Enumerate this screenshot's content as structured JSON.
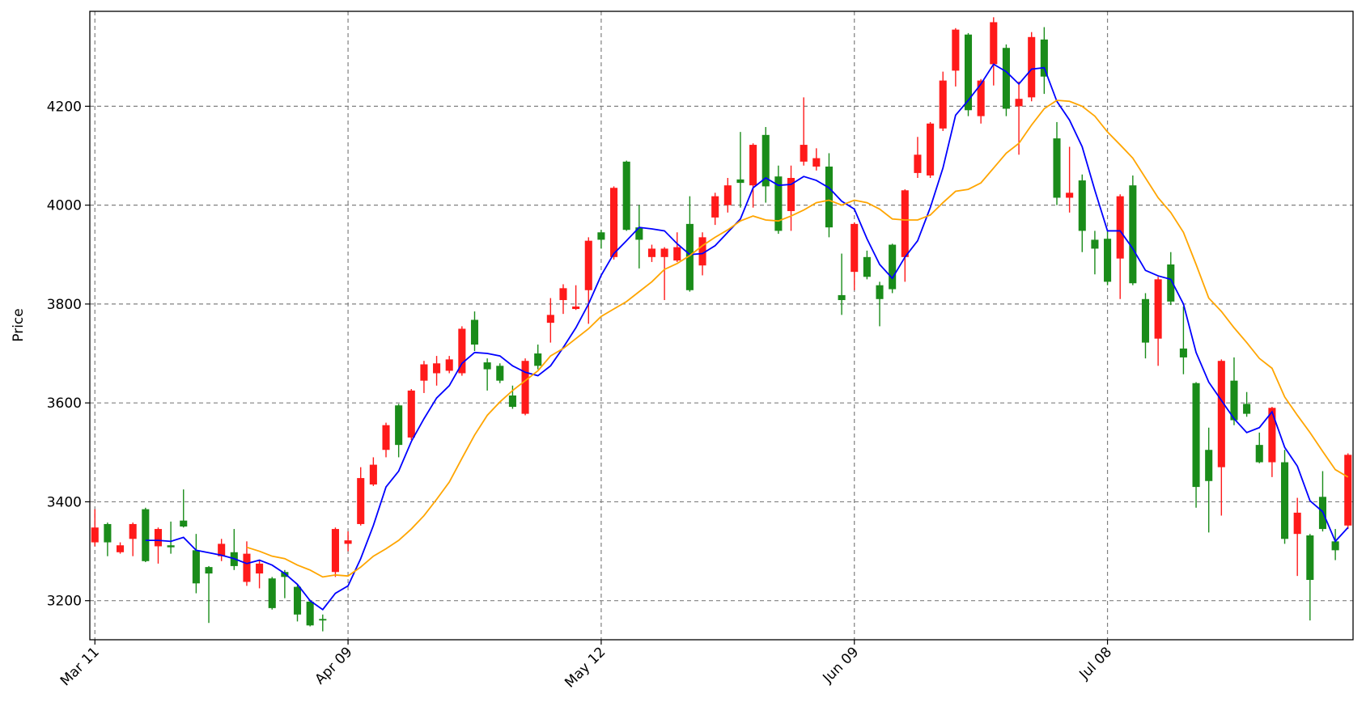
{
  "chart_data": {
    "type": "candlestick",
    "ylabel": "Price",
    "categories": [
      "Mar 11",
      null,
      null,
      null,
      null,
      null,
      null,
      null,
      null,
      null,
      null,
      null,
      null,
      null,
      null,
      null,
      null,
      null,
      null,
      null,
      "Apr 09",
      null,
      null,
      null,
      null,
      null,
      null,
      null,
      null,
      null,
      null,
      null,
      null,
      null,
      null,
      null,
      null,
      null,
      null,
      null,
      "May 12",
      null,
      null,
      null,
      null,
      null,
      null,
      null,
      null,
      null,
      null,
      null,
      null,
      null,
      null,
      null,
      null,
      null,
      null,
      null,
      "Jun 09",
      null,
      null,
      null,
      null,
      null,
      null,
      null,
      null,
      null,
      null,
      null,
      null,
      null,
      null,
      null,
      null,
      null,
      null,
      null,
      "Jul 08",
      null,
      null,
      null,
      null,
      null,
      null,
      null,
      null,
      null,
      null,
      null,
      null,
      null,
      null,
      null,
      null,
      null,
      null,
      null
    ],
    "open": [
      3318,
      3355,
      3298,
      3325,
      3385,
      3310,
      3312,
      3362,
      3302,
      3268,
      3290,
      3298,
      3238,
      3255,
      3245,
      3258,
      3228,
      3198,
      3163,
      3258,
      3315,
      3355,
      3435,
      3505,
      3595,
      3530,
      3645,
      3660,
      3665,
      3660,
      3768,
      3682,
      3675,
      3615,
      3578,
      3700,
      3762,
      3808,
      3790,
      3828,
      3945,
      3895,
      4088,
      3955,
      3895,
      3895,
      3888,
      3962,
      3878,
      3975,
      4000,
      4052,
      4040,
      4142,
      4058,
      3988,
      4088,
      4078,
      4078,
      3818,
      3865,
      3895,
      3838,
      3920,
      3895,
      4065,
      4060,
      4155,
      4272,
      4345,
      4180,
      4285,
      4318,
      4200,
      4218,
      4335,
      4135,
      4015,
      4050,
      3930,
      3932,
      3892,
      4040,
      3810,
      3730,
      3880,
      3710,
      3640,
      3505,
      3470,
      3645,
      3598,
      3515,
      3480,
      3480,
      3335,
      3332,
      3410,
      3320,
      3352
    ],
    "high": [
      3385,
      3358,
      3318,
      3358,
      3388,
      3348,
      3360,
      3425,
      3335,
      3270,
      3325,
      3345,
      3320,
      3282,
      3248,
      3262,
      3232,
      3202,
      3172,
      3348,
      3340,
      3470,
      3490,
      3560,
      3598,
      3628,
      3685,
      3695,
      3695,
      3755,
      3785,
      3690,
      3680,
      3635,
      3690,
      3718,
      3812,
      3840,
      3838,
      3935,
      3950,
      4038,
      4090,
      4000,
      3920,
      3915,
      3945,
      4018,
      3945,
      4025,
      4055,
      4148,
      4125,
      4158,
      4080,
      4080,
      4218,
      4115,
      4105,
      3902,
      3965,
      3908,
      3845,
      3922,
      4032,
      4138,
      4168,
      4270,
      4358,
      4348,
      4255,
      4380,
      4325,
      4250,
      4350,
      4360,
      4168,
      4118,
      4062,
      3948,
      3948,
      4022,
      4060,
      3822,
      3855,
      3905,
      3795,
      3642,
      3550,
      3688,
      3692,
      3622,
      3540,
      3592,
      3505,
      3408,
      3335,
      3462,
      3345,
      3498
    ],
    "low": [
      3310,
      3290,
      3295,
      3290,
      3278,
      3275,
      3295,
      3348,
      3215,
      3155,
      3280,
      3262,
      3230,
      3225,
      3182,
      3205,
      3158,
      3148,
      3138,
      3248,
      3300,
      3352,
      3432,
      3490,
      3490,
      3525,
      3620,
      3635,
      3660,
      3655,
      3705,
      3625,
      3640,
      3588,
      3575,
      3668,
      3722,
      3780,
      3788,
      3760,
      3912,
      3890,
      3948,
      3872,
      3885,
      3808,
      3885,
      3825,
      3858,
      3960,
      3985,
      3995,
      3995,
      4005,
      3942,
      3948,
      4080,
      4070,
      3935,
      3778,
      3828,
      3850,
      3755,
      3822,
      3845,
      4055,
      4055,
      4150,
      4240,
      4180,
      4165,
      4242,
      4180,
      4102,
      4210,
      4225,
      4000,
      3985,
      3905,
      3860,
      3838,
      3810,
      3838,
      3690,
      3675,
      3798,
      3658,
      3388,
      3338,
      3372,
      3555,
      3572,
      3478,
      3450,
      3315,
      3250,
      3160,
      3340,
      3282,
      3345
    ],
    "close": [
      3348,
      3318,
      3312,
      3355,
      3280,
      3345,
      3308,
      3350,
      3235,
      3255,
      3315,
      3270,
      3295,
      3275,
      3185,
      3248,
      3172,
      3150,
      3160,
      3345,
      3322,
      3448,
      3475,
      3555,
      3515,
      3625,
      3678,
      3680,
      3688,
      3750,
      3718,
      3668,
      3645,
      3592,
      3685,
      3675,
      3778,
      3832,
      3795,
      3928,
      3930,
      4035,
      3950,
      3930,
      3912,
      3912,
      3915,
      3828,
      3935,
      4018,
      4040,
      4045,
      4122,
      4038,
      3948,
      4055,
      4122,
      4095,
      3955,
      3808,
      3962,
      3855,
      3810,
      3830,
      4030,
      4102,
      4165,
      4252,
      4355,
      4192,
      4252,
      4370,
      4195,
      4215,
      4340,
      4260,
      4015,
      4025,
      3948,
      3912,
      3845,
      4018,
      3842,
      3722,
      3850,
      3805,
      3692,
      3430,
      3442,
      3685,
      3565,
      3578,
      3480,
      3590,
      3325,
      3378,
      3242,
      3345,
      3302,
      3495
    ],
    "up_color": "#ff1a1a",
    "down_color": "#1a8c1a",
    "series": [
      {
        "color": "#0000ff",
        "values": [
          null,
          null,
          null,
          null,
          3322,
          3322,
          3320,
          3328,
          3302,
          3297,
          3292,
          3285,
          3275,
          3282,
          3272,
          3255,
          3233,
          3200,
          3182,
          3215,
          3230,
          3285,
          3352,
          3430,
          3462,
          3522,
          3568,
          3610,
          3635,
          3680,
          3702,
          3700,
          3695,
          3675,
          3662,
          3655,
          3675,
          3712,
          3752,
          3800,
          3858,
          3902,
          3928,
          3955,
          3952,
          3948,
          3922,
          3900,
          3902,
          3918,
          3945,
          3972,
          4035,
          4055,
          4040,
          4042,
          4058,
          4050,
          4035,
          4008,
          3992,
          3932,
          3880,
          3852,
          3895,
          3928,
          3995,
          4075,
          4182,
          4212,
          4245,
          4285,
          4270,
          4245,
          4275,
          4278,
          4210,
          4172,
          4118,
          4030,
          3948,
          3948,
          3912,
          3868,
          3857,
          3850,
          3800,
          3702,
          3642,
          3605,
          3568,
          3540,
          3550,
          3582,
          3510,
          3472,
          3402,
          3380,
          3320,
          3348
        ]
      },
      {
        "color": "#ffa500",
        "values": [
          null,
          null,
          null,
          null,
          null,
          null,
          null,
          null,
          null,
          null,
          null,
          null,
          3308,
          3300,
          3290,
          3285,
          3272,
          3262,
          3248,
          3252,
          3250,
          3268,
          3290,
          3305,
          3322,
          3345,
          3372,
          3405,
          3440,
          3488,
          3535,
          3575,
          3602,
          3625,
          3645,
          3665,
          3695,
          3710,
          3730,
          3750,
          3775,
          3790,
          3805,
          3825,
          3845,
          3870,
          3882,
          3898,
          3918,
          3935,
          3950,
          3968,
          3978,
          3970,
          3968,
          3978,
          3990,
          4005,
          4010,
          4000,
          4010,
          4005,
          3992,
          3972,
          3970,
          3970,
          3980,
          4005,
          4028,
          4032,
          4045,
          4075,
          4105,
          4125,
          4162,
          4195,
          4212,
          4210,
          4200,
          4180,
          4148,
          4122,
          4095,
          4055,
          4015,
          3985,
          3945,
          3880,
          3812,
          3785,
          3752,
          3722,
          3690,
          3670,
          3612,
          3575,
          3540,
          3502,
          3465,
          3450
        ]
      }
    ],
    "ylim": [
      3121,
      4392
    ],
    "yticks": [
      3200,
      3400,
      3600,
      3800,
      4000,
      4200
    ],
    "grid": true
  }
}
